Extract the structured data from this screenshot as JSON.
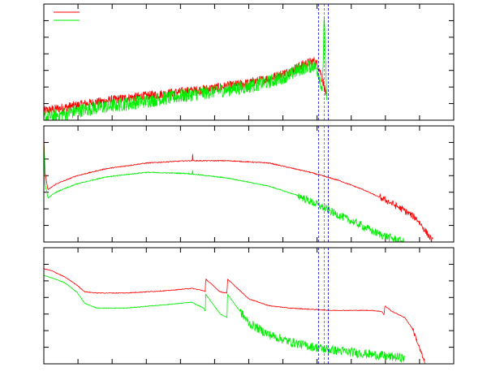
{
  "chart_data": [
    {
      "type": "line",
      "title": "",
      "xlabel": "",
      "ylabel": "",
      "xlim": [
        0,
        100
      ],
      "ylim": [
        0,
        100
      ],
      "grid": false,
      "legend": "top-left",
      "series": [
        {
          "color": "#ff0000",
          "noise": 4,
          "x": [
            0,
            10,
            20,
            30,
            40,
            50,
            55,
            60,
            62,
            64,
            66,
            67,
            68,
            69
          ],
          "y": [
            8,
            14,
            19,
            23,
            27,
            32,
            36,
            42,
            46,
            49,
            51,
            47,
            35,
            20
          ]
        },
        {
          "color": "#00ee00",
          "noise": 6,
          "x": [
            0,
            10,
            20,
            30,
            40,
            50,
            55,
            60,
            62,
            64,
            66,
            67,
            68,
            68.4,
            68.7,
            69
          ],
          "y": [
            2,
            9,
            14,
            19,
            24,
            29,
            33,
            39,
            43,
            46,
            47,
            41,
            25,
            95,
            50,
            20
          ]
        }
      ],
      "vlines": [
        {
          "x": 67.0,
          "color": "#0000cc"
        },
        {
          "x": 68.4,
          "color": "#00aa00"
        },
        {
          "x": 69.4,
          "color": "#0000cc"
        }
      ]
    },
    {
      "type": "line",
      "title": "",
      "xlabel": "",
      "ylabel": "",
      "xlim": [
        0,
        100
      ],
      "ylim": [
        0,
        100
      ],
      "grid": false,
      "series": [
        {
          "color": "#ff0000",
          "noise": 0.4,
          "spike": {
            "x": 36.3,
            "height": 6
          },
          "x": [
            0,
            0.3,
            1,
            3,
            8,
            15,
            25,
            35,
            45,
            55,
            65,
            72,
            78,
            84,
            88,
            91,
            93,
            95
          ],
          "y": [
            90,
            60,
            45,
            50,
            57,
            63,
            68,
            70,
            70,
            68,
            60,
            53,
            45,
            35,
            27,
            20,
            10,
            0
          ],
          "noise_from": 82,
          "noise_late": 3
        },
        {
          "color": "#00ee00",
          "noise": 0.4,
          "spike": {
            "x": 36.3,
            "height": 3
          },
          "x": [
            0,
            0.3,
            1,
            3,
            8,
            15,
            25,
            35,
            45,
            55,
            62,
            68,
            72,
            77,
            81,
            85,
            88
          ],
          "y": [
            88,
            50,
            38,
            43,
            50,
            56,
            60,
            59,
            55,
            48,
            40,
            30,
            23,
            15,
            8,
            3,
            0
          ],
          "noise_from": 62,
          "noise_late": 3.5
        }
      ],
      "vlines": [
        {
          "x": 67.0,
          "color": "#0000cc"
        },
        {
          "x": 68.4,
          "color": "#00aa00"
        },
        {
          "x": 69.4,
          "color": "#0000cc"
        }
      ]
    },
    {
      "type": "line",
      "title": "",
      "xlabel": "",
      "ylabel": "",
      "xlim": [
        0,
        100
      ],
      "ylim": [
        0,
        100
      ],
      "grid": false,
      "series": [
        {
          "color": "#ff0000",
          "noise": 0.3,
          "x": [
            0,
            2,
            5,
            8,
            10,
            13,
            20,
            30,
            36,
            39,
            39.4,
            39.5,
            43,
            44.7,
            44.8,
            50,
            55,
            60,
            65,
            70,
            75,
            80,
            82.5,
            83,
            83.2,
            85,
            88,
            90,
            91.5,
            93
          ],
          "y": [
            82,
            80,
            75,
            68,
            62,
            61,
            61,
            63,
            65,
            63,
            62,
            73,
            62,
            61,
            73,
            56,
            50,
            48,
            47,
            46,
            46,
            46,
            45,
            42,
            50,
            45,
            40,
            30,
            15,
            0
          ],
          "noise_from": 90,
          "noise_late": 2
        },
        {
          "color": "#00ee00",
          "noise": 0.3,
          "x": [
            0,
            2,
            5,
            8,
            10,
            13,
            20,
            30,
            36,
            39,
            39.4,
            39.5,
            43,
            44.7,
            44.8,
            50,
            55,
            60,
            65,
            70,
            75,
            80,
            85,
            88
          ],
          "y": [
            76,
            74,
            70,
            62,
            52,
            48,
            48,
            51,
            53,
            48,
            45,
            60,
            43,
            40,
            60,
            35,
            25,
            19,
            15,
            12,
            10,
            8,
            6,
            5
          ],
          "noise_from": 48,
          "noise_late": 4
        }
      ],
      "vlines": [
        {
          "x": 67.0,
          "color": "#0000cc"
        },
        {
          "x": 68.4,
          "color": "#00aa00"
        },
        {
          "x": 69.4,
          "color": "#0000cc"
        }
      ]
    }
  ]
}
